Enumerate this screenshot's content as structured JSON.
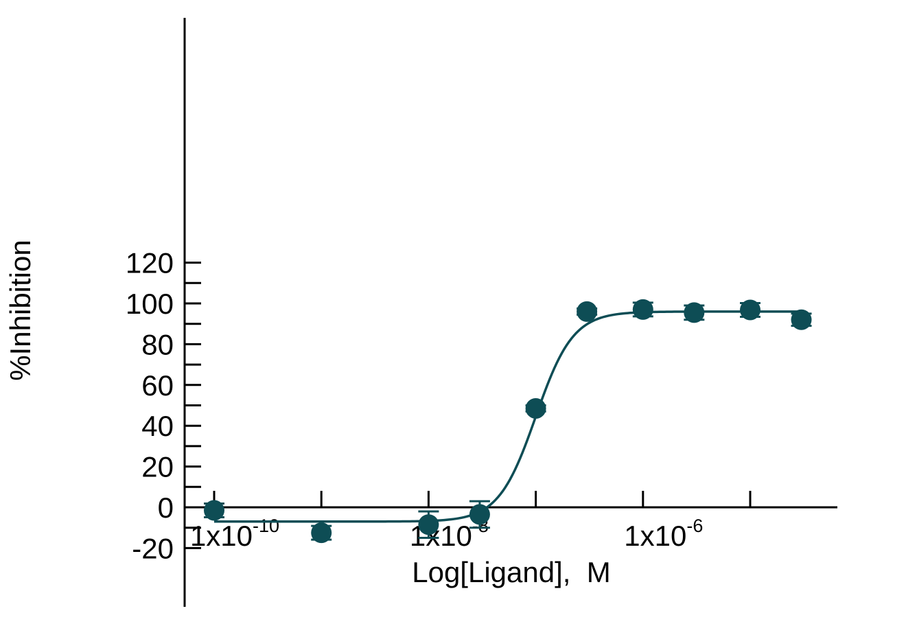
{
  "chart_data": {
    "type": "scatter",
    "title": "",
    "xlabel": "Log[Ligand],  M",
    "ylabel": "%Inhibition",
    "x_scale": "log10",
    "xlim": [
      1e-10,
      0.0001
    ],
    "ylim": [
      -20,
      120
    ],
    "y_ticks": [
      -20,
      0,
      20,
      40,
      60,
      80,
      100,
      120
    ],
    "y_minor_ticks": [
      -10,
      10,
      30,
      50,
      70,
      90,
      110
    ],
    "x_ticks": [
      1e-10,
      1e-09,
      1e-08,
      1e-07,
      1e-06,
      1e-05
    ],
    "x_tick_labels": [
      {
        "x": 1e-10,
        "base": "1x10",
        "exp": "-10"
      },
      {
        "x": 1e-08,
        "base": "1x10",
        "exp": "-8"
      },
      {
        "x": 1e-06,
        "base": "1x10",
        "exp": "-6"
      }
    ],
    "points": [
      {
        "x": 1e-10,
        "y": -1.5,
        "err": 0.5
      },
      {
        "x": 1e-09,
        "y": -12.5,
        "err": 0.5
      },
      {
        "x": 1e-08,
        "y": -8.5,
        "err": 6.5
      },
      {
        "x": 3e-08,
        "y": -3.5,
        "err": 6.5
      },
      {
        "x": 1e-07,
        "y": 48.5,
        "err": 1.5
      },
      {
        "x": 3e-07,
        "y": 96.0,
        "err": 1.5
      },
      {
        "x": 1e-06,
        "y": 97.0,
        "err": 1.0
      },
      {
        "x": 3e-06,
        "y": 95.5,
        "err": 3.5
      },
      {
        "x": 1e-05,
        "y": 96.8,
        "err": 1.0
      },
      {
        "x": 3e-05,
        "y": 92.0,
        "err": 3.0
      }
    ],
    "fit": {
      "model": "four-parameter logistic",
      "bottom": -7,
      "top": 96,
      "log_ec50": -7.0,
      "hill_slope": 2.5,
      "x_range": [
        1e-10,
        3e-05
      ]
    },
    "grid": false,
    "colors": {
      "series": "#0e4d55",
      "axes": "#000000"
    }
  }
}
